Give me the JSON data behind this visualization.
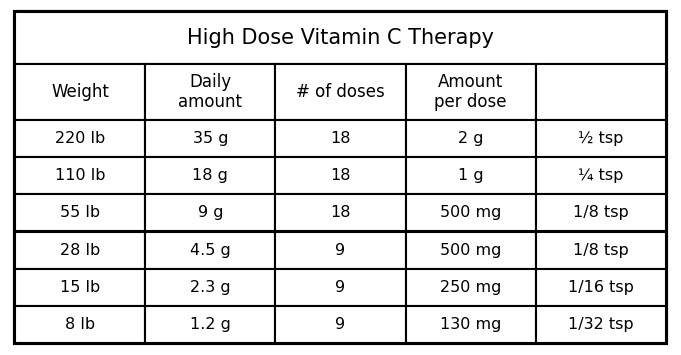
{
  "title": "High Dose Vitamin C Therapy",
  "col_headers": [
    "Weight",
    "Daily\namount",
    "# of doses",
    "Amount\nper dose",
    ""
  ],
  "rows": [
    [
      "220 lb",
      "35 g",
      "18",
      "2 g",
      "½ tsp"
    ],
    [
      "110 lb",
      "18 g",
      "18",
      "1 g",
      "¼ tsp"
    ],
    [
      "55 lb",
      "9 g",
      "18",
      "500 mg",
      "1/8 tsp"
    ],
    [
      "28 lb",
      "4.5 g",
      "9",
      "500 mg",
      "1/8 tsp"
    ],
    [
      "15 lb",
      "2.3 g",
      "9",
      "250 mg",
      "1/16 tsp"
    ],
    [
      "8 lb",
      "1.2 g",
      "9",
      "130 mg",
      "1/32 tsp"
    ]
  ],
  "background_color": "#ffffff",
  "border_color": "#000000",
  "text_color": "#000000",
  "font_size": 11.5,
  "header_font_size": 12,
  "title_font_size": 15
}
